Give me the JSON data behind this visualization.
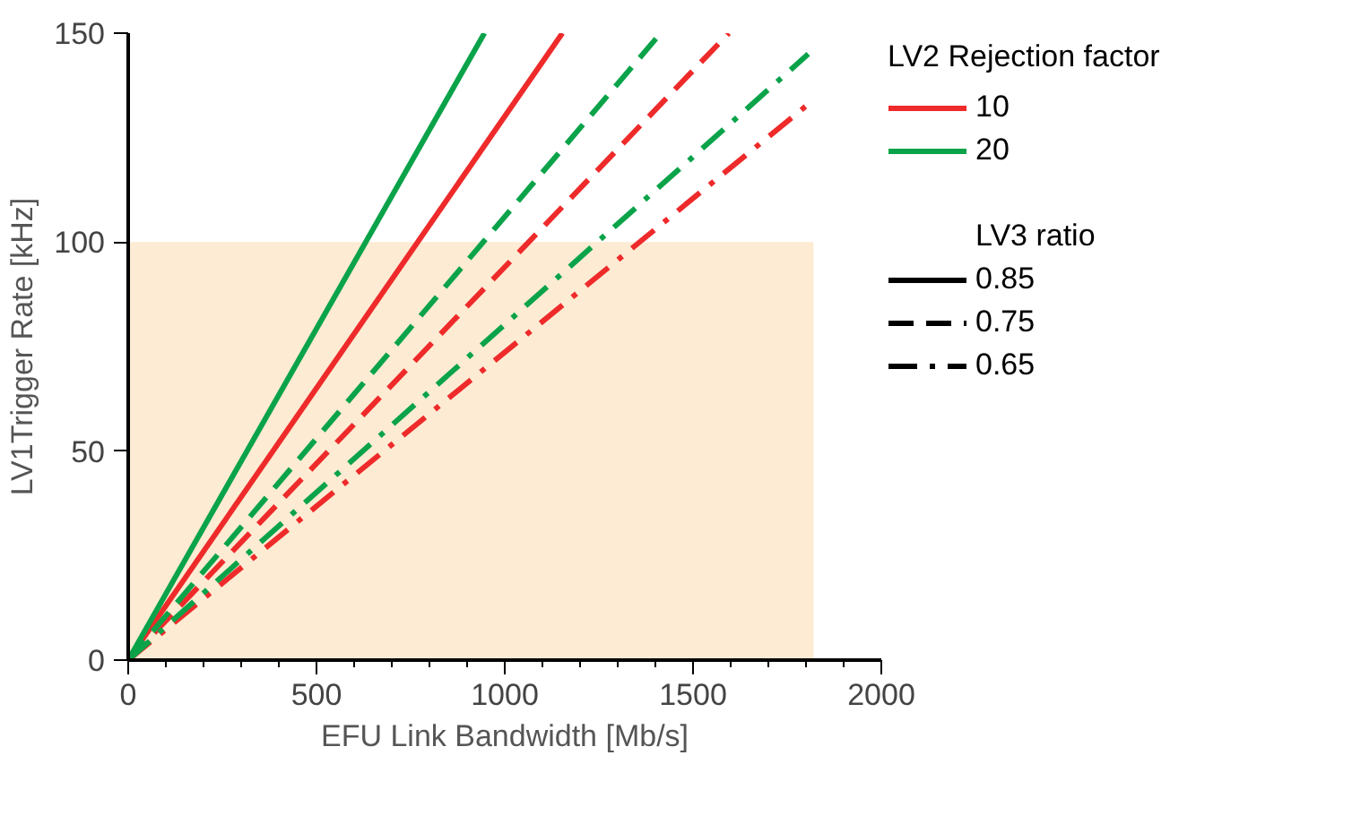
{
  "chart_data": {
    "type": "line",
    "xlabel": "EFU Link Bandwidth [Mb/s]",
    "ylabel": "LV1Trigger Rate [kHz]",
    "xlim": [
      0,
      2000
    ],
    "ylim": [
      0,
      150
    ],
    "xticks": [
      0,
      500,
      1000,
      1500,
      2000
    ],
    "yticks": [
      0,
      50,
      100,
      150
    ],
    "grid": false,
    "series": [
      {
        "type": "area",
        "color": "#fdebd3",
        "x": [
          0,
          1820
        ],
        "values": [
          100,
          100
        ]
      },
      {
        "color": "#ee2a2a",
        "line_style": "solid",
        "x": [
          0,
          1153
        ],
        "values": [
          0,
          150
        ]
      },
      {
        "color": "#0aa34a",
        "line_style": "solid",
        "x": [
          0,
          946
        ],
        "values": [
          0,
          150
        ]
      },
      {
        "color": "#ee2a2a",
        "line_style": "dashed",
        "x": [
          0,
          1595
        ],
        "values": [
          0,
          150
        ]
      },
      {
        "color": "#0aa34a",
        "line_style": "dashed",
        "x": [
          0,
          1414
        ],
        "values": [
          0,
          150
        ]
      },
      {
        "color": "#ee2a2a",
        "line_style": "dashdot",
        "x": [
          0,
          1806
        ],
        "values": [
          0,
          133
        ]
      },
      {
        "color": "#0aa34a",
        "line_style": "dashdot",
        "x": [
          0,
          1806
        ],
        "values": [
          0,
          145
        ]
      }
    ],
    "annotations": [
      "LV2 Rejection factor",
      "10",
      "20",
      "LV3 ratio",
      "0.85",
      "0.75",
      "0.65"
    ]
  }
}
